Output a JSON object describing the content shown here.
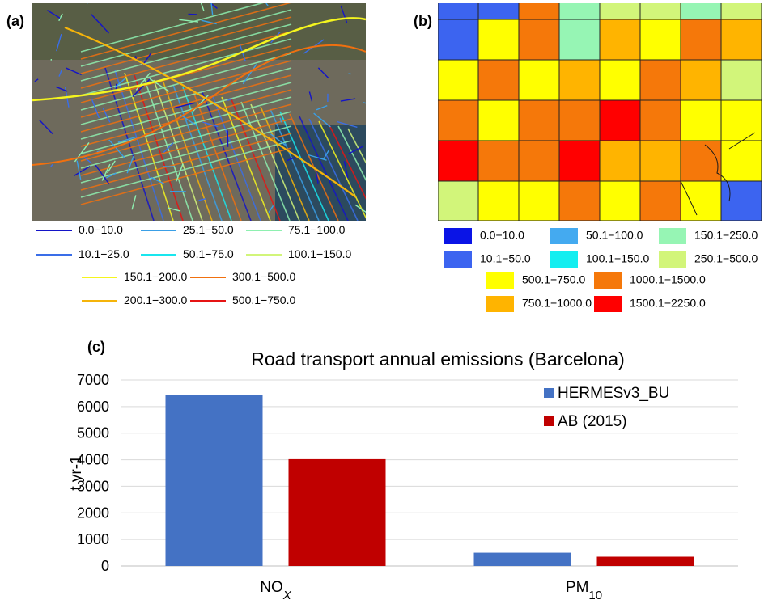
{
  "panel_a": {
    "label": "(a)",
    "legend": [
      {
        "text": "0.0−10.0",
        "color": "#1414c8"
      },
      {
        "text": "25.1−50.0",
        "color": "#3a9fe6"
      },
      {
        "text": "75.1−100.0",
        "color": "#8ef0b0"
      },
      {
        "text": "10.1−25.0",
        "color": "#3a6ee8"
      },
      {
        "text": "50.1−75.0",
        "color": "#19e6ee"
      },
      {
        "text": "100.1−150.0",
        "color": "#d2f57a"
      },
      {
        "text": "150.1−200.0",
        "color": "#f5f51e"
      },
      {
        "text": "300.1−500.0",
        "color": "#f0700f"
      },
      {
        "text": "200.1−300.0",
        "color": "#f5b40a"
      },
      {
        "text": "500.1−750.0",
        "color": "#e61414"
      }
    ]
  },
  "panel_b": {
    "label": "(b)",
    "legend": [
      {
        "text": "0.0−10.0",
        "color": "#0a14e6"
      },
      {
        "text": "50.1−100.0",
        "color": "#44aaf0"
      },
      {
        "text": "150.1−250.0",
        "color": "#96f5b4"
      },
      {
        "text": "10.1−50.0",
        "color": "#3c64f0"
      },
      {
        "text": "100.1−150.0",
        "color": "#14eef0"
      },
      {
        "text": "250.1−500.0",
        "color": "#d2f57a"
      },
      {
        "text": "500.1−750.0",
        "color": "#ffff00"
      },
      {
        "text": "1000.1−1500.0",
        "color": "#f5780a"
      },
      {
        "text": "750.1−1000.0",
        "color": "#ffb400"
      },
      {
        "text": "1500.1−2250.0",
        "color": "#ff0000"
      }
    ],
    "grid": [
      [
        "#3c64f0",
        "#3c64f0",
        "#f5780a",
        "#96f5b4",
        "#d2f57a",
        "#d2f57a",
        "#96f5b4",
        "#d2f57a"
      ],
      [
        "#3c64f0",
        "#ffff00",
        "#f5780a",
        "#96f5b4",
        "#ffb400",
        "#ffff00",
        "#f5780a",
        "#ffb400"
      ],
      [
        "#ffff00",
        "#f5780a",
        "#ffff00",
        "#ffb400",
        "#ffff00",
        "#f5780a",
        "#ffb400",
        "#d2f57a"
      ],
      [
        "#f5780a",
        "#ffff00",
        "#f5780a",
        "#f5780a",
        "#ff0000",
        "#f5780a",
        "#ffff00",
        "#ffff00"
      ],
      [
        "#ff0000",
        "#f5780a",
        "#f5780a",
        "#ff0000",
        "#ffb400",
        "#ffb400",
        "#f5780a",
        "#ffff00"
      ],
      [
        "#d2f57a",
        "#ffff00",
        "#ffff00",
        "#f5780a",
        "#ffff00",
        "#f5780a",
        "#ffff00",
        "#3c64f0"
      ]
    ]
  },
  "chart_data": {
    "type": "bar",
    "label": "(c)",
    "title": "Road transport annual emissions (Barcelona)",
    "ylabel": "t yr-1",
    "categories": [
      "NOX",
      "PM10"
    ],
    "ylim": [
      0,
      7000
    ],
    "yticks": [
      0,
      1000,
      2000,
      3000,
      4000,
      5000,
      6000,
      7000
    ],
    "grid": true,
    "legend_position": "top-right",
    "series": [
      {
        "name": "HERMESv3_BU",
        "color": "#4472c4",
        "values": [
          6450,
          500
        ]
      },
      {
        "name": "AB (2015)",
        "color": "#c00000",
        "values": [
          4020,
          350
        ]
      }
    ]
  }
}
